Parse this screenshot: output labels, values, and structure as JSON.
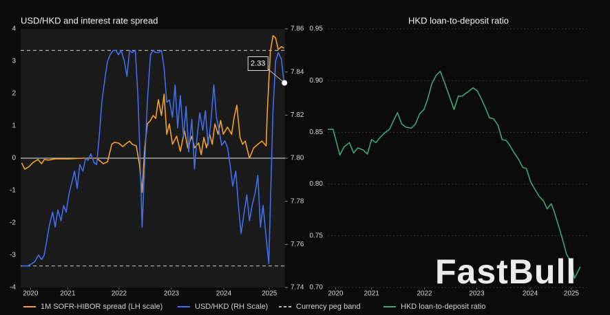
{
  "chart_data": [
    {
      "type": "line",
      "title": "USD/HKD and interest rate spread",
      "xlim": [
        2020.59,
        2025.64
      ],
      "xticks": [
        {
          "value": 2020.78,
          "label": "2020"
        },
        {
          "value": 2021.49,
          "label": "2021"
        },
        {
          "value": 2022.47,
          "label": "2022"
        },
        {
          "value": 2023.47,
          "label": "2023"
        },
        {
          "value": 2024.47,
          "label": "2024"
        },
        {
          "value": 2025.34,
          "label": "2025"
        }
      ],
      "ylim": [
        -4,
        4
      ],
      "yticks": [
        -4,
        -3,
        -2,
        -1,
        0,
        1,
        2,
        3,
        4
      ],
      "y2lim": [
        7.74,
        7.86
      ],
      "y2ticks": [
        7.74,
        7.76,
        7.78,
        {
          "value": 7.8,
          "label": "7.80"
        },
        7.82,
        7.84,
        7.86
      ],
      "series": [
        {
          "name": "1M SOFR-HIBOR spread (LH scale)",
          "color": "#f5a227",
          "x": [
            2020.61,
            2020.67,
            2020.75,
            2020.83,
            2020.92,
            2020.99,
            2021.04,
            2021.12,
            2021.25,
            2021.51,
            2021.78,
            2022.04,
            2022.17,
            2022.25,
            2022.33,
            2022.38,
            2022.46,
            2022.54,
            2022.62,
            2022.67,
            2022.72,
            2022.8,
            2022.86,
            2022.91,
            2022.96,
            2023.01,
            2023.07,
            2023.12,
            2023.17,
            2023.22,
            2023.28,
            2023.33,
            2023.38,
            2023.43,
            2023.49,
            2023.57,
            2023.64,
            2023.72,
            2023.78,
            2023.86,
            2023.91,
            2023.99,
            2024.04,
            2024.09,
            2024.14,
            2024.2,
            2024.25,
            2024.3,
            2024.36,
            2024.41,
            2024.46,
            2024.54,
            2024.62,
            2024.67,
            2024.72,
            2024.78,
            2024.83,
            2024.88,
            2024.96,
            2025.04,
            2025.12,
            2025.2,
            2025.28,
            2025.3,
            2025.36,
            2025.41,
            2025.46,
            2025.51,
            2025.57,
            2025.62
          ],
          "values": [
            -0.15,
            -0.34,
            -0.26,
            -0.13,
            -0.04,
            -0.17,
            -0.04,
            -0.06,
            -0.02,
            -0.02,
            0,
            0,
            -0.17,
            -0.11,
            0.43,
            0.49,
            0.47,
            0.36,
            0.47,
            0.53,
            0.43,
            0.38,
            -0.21,
            -1.06,
            0.32,
            1.06,
            1.17,
            1.32,
            1.23,
            1.81,
            1.32,
            1.98,
            0.74,
            1.06,
            0.43,
            0.68,
            0.21,
            0.85,
            0.32,
            0.68,
            0.32,
            0.47,
            0.11,
            0.64,
            0.32,
            0.74,
            0.43,
            1.06,
            0.74,
            1.17,
            0.74,
            0.96,
            0.74,
            1.28,
            1.64,
            0.64,
            0.43,
            0.53,
            0,
            0.32,
            0.43,
            0.53,
            0.38,
            1.38,
            3.3,
            3.79,
            3.72,
            3.36,
            3.45,
            3.4
          ]
        },
        {
          "name": "USD/HKD (RH Scale)",
          "color": "#3f6ff2",
          "axis": "y2",
          "x": [
            2020.61,
            2020.72,
            2020.8,
            2020.86,
            2020.93,
            2020.99,
            2021.04,
            2021.09,
            2021.14,
            2021.2,
            2021.25,
            2021.3,
            2021.36,
            2021.41,
            2021.46,
            2021.51,
            2021.57,
            2021.62,
            2021.67,
            2021.72,
            2021.78,
            2021.83,
            2021.88,
            2021.93,
            2021.99,
            2022.04,
            2022.09,
            2022.14,
            2022.2,
            2022.25,
            2022.3,
            2022.36,
            2022.41,
            2022.46,
            2022.51,
            2022.57,
            2022.62,
            2022.67,
            2022.72,
            2022.78,
            2022.83,
            2022.88,
            2022.91,
            2022.96,
            2023.01,
            2023.07,
            2023.12,
            2023.17,
            2023.22,
            2023.28,
            2023.33,
            2023.38,
            2023.43,
            2023.49,
            2023.54,
            2023.59,
            2023.64,
            2023.7,
            2023.75,
            2023.8,
            2023.86,
            2023.91,
            2023.96,
            2024.01,
            2024.07,
            2024.12,
            2024.17,
            2024.22,
            2024.28,
            2024.33,
            2024.38,
            2024.43,
            2024.49,
            2024.54,
            2024.59,
            2024.64,
            2024.7,
            2024.75,
            2024.8,
            2024.86,
            2024.91,
            2024.96,
            2025.01,
            2025.07,
            2025.12,
            2025.17,
            2025.22,
            2025.28,
            2025.33,
            2025.36,
            2025.41,
            2025.46,
            2025.51,
            2025.57,
            2025.62
          ],
          "values": [
            7.75,
            7.75,
            7.751,
            7.752,
            7.755,
            7.753,
            7.755,
            7.762,
            7.769,
            7.775,
            7.768,
            7.776,
            7.771,
            7.778,
            7.775,
            7.783,
            7.789,
            7.794,
            7.786,
            7.797,
            7.794,
            7.8,
            7.799,
            7.802,
            7.798,
            7.797,
            7.81,
            7.826,
            7.837,
            7.845,
            7.848,
            7.85,
            7.85,
            7.848,
            7.85,
            7.845,
            7.838,
            7.85,
            7.849,
            7.85,
            7.829,
            7.794,
            7.768,
            7.797,
            7.826,
            7.848,
            7.85,
            7.849,
            7.849,
            7.85,
            7.842,
            7.826,
            7.827,
            7.819,
            7.834,
            7.814,
            7.829,
            7.81,
            7.824,
            7.803,
            7.818,
            7.795,
            7.81,
            7.821,
            7.813,
            7.822,
            7.806,
            7.816,
            7.834,
            7.819,
            7.813,
            7.806,
            7.808,
            7.805,
            7.797,
            7.787,
            7.794,
            7.778,
            7.765,
            7.775,
            7.783,
            7.771,
            7.778,
            7.784,
            7.792,
            7.768,
            7.778,
            7.763,
            7.751,
            7.778,
            7.822,
            7.845,
            7.849,
            7.846,
            7.835
          ]
        }
      ],
      "bands": {
        "name": "Currency peg band",
        "color": "#bbbbbb",
        "axis": "y2",
        "values": [
          7.75,
          7.85
        ]
      },
      "annotation": {
        "x": 2025.63,
        "value": 2.33
      }
    },
    {
      "type": "line",
      "title": "HKD loan-to-deposit ratio",
      "grid": true,
      "xlim": [
        2020.56,
        2025.51
      ],
      "xticks": [
        {
          "value": 2020.71,
          "label": "2020"
        },
        {
          "value": 2021.39,
          "label": "2021"
        },
        {
          "value": 2022.39,
          "label": "2022"
        },
        {
          "value": 2023.38,
          "label": "2023"
        },
        {
          "value": 2024.39,
          "label": "2024"
        },
        {
          "value": 2025.17,
          "label": "2025"
        }
      ],
      "ylim": [
        0.7,
        0.95
      ],
      "yticks": [
        {
          "value": 0.7,
          "label": "0.70"
        },
        0.75,
        {
          "value": 0.8,
          "label": "0.80"
        },
        0.85,
        {
          "value": 0.9,
          "label": "0.90"
        },
        0.95
      ],
      "series": [
        {
          "name": "HKD loan-to-deposit ratio",
          "color": "#3aa776",
          "x": [
            2020.56,
            2020.66,
            2020.79,
            2020.87,
            2020.97,
            2021.05,
            2021.13,
            2021.23,
            2021.31,
            2021.39,
            2021.47,
            2021.55,
            2021.65,
            2021.73,
            2021.81,
            2021.88,
            2021.96,
            2022.04,
            2022.14,
            2022.22,
            2022.3,
            2022.38,
            2022.45,
            2022.53,
            2022.61,
            2022.69,
            2022.77,
            2022.84,
            2022.95,
            2023.03,
            2023.1,
            2023.21,
            2023.31,
            2023.39,
            2023.47,
            2023.55,
            2023.62,
            2023.7,
            2023.78,
            2023.86,
            2023.94,
            2024.01,
            2024.09,
            2024.17,
            2024.25,
            2024.32,
            2024.4,
            2024.48,
            2024.56,
            2024.64,
            2024.71,
            2024.79,
            2024.84,
            2024.92,
            2025.0,
            2025.08,
            2025.16,
            2025.23,
            2025.34
          ],
          "values": [
            0.853,
            0.853,
            0.828,
            0.836,
            0.84,
            0.83,
            0.835,
            0.833,
            0.829,
            0.843,
            0.84,
            0.845,
            0.85,
            0.853,
            0.862,
            0.869,
            0.858,
            0.855,
            0.854,
            0.858,
            0.868,
            0.872,
            0.882,
            0.897,
            0.905,
            0.909,
            0.898,
            0.888,
            0.872,
            0.885,
            0.885,
            0.889,
            0.893,
            0.89,
            0.882,
            0.873,
            0.864,
            0.863,
            0.857,
            0.843,
            0.842,
            0.837,
            0.83,
            0.824,
            0.816,
            0.815,
            0.802,
            0.795,
            0.788,
            0.784,
            0.776,
            0.781,
            0.774,
            0.761,
            0.747,
            0.732,
            0.725,
            0.709,
            0.72
          ]
        }
      ]
    }
  ],
  "watermark": "FastBull"
}
